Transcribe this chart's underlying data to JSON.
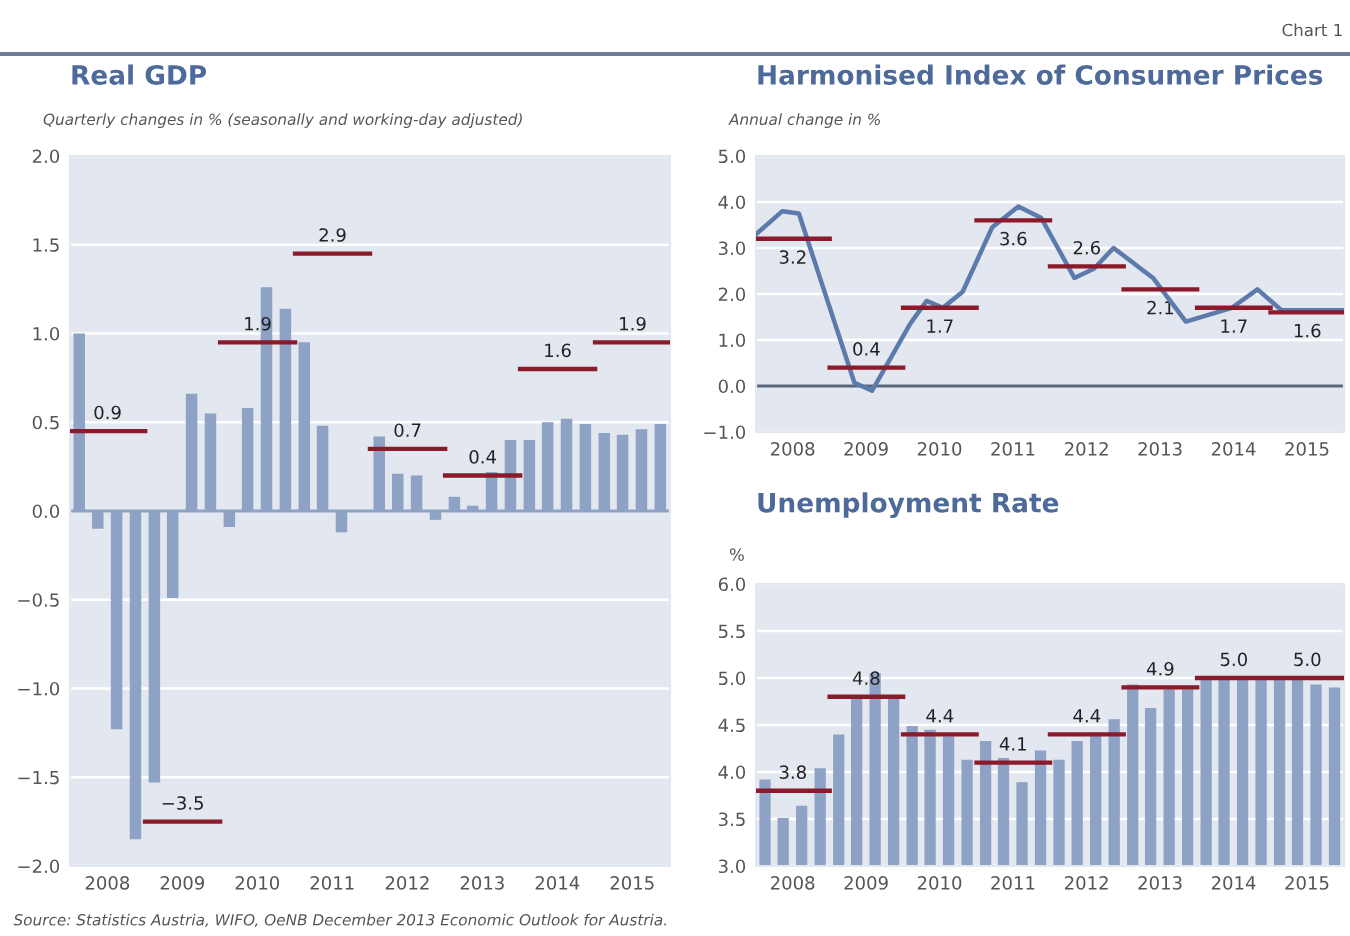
{
  "chart_data": [
    {
      "type": "bar",
      "title": "Real GDP",
      "subtitle": "Quarterly changes in % (seasonally and working-day adjusted)",
      "x": [
        "2008-02-15",
        "2008-05-15",
        "2008-08-15",
        "2008-11-15",
        "2009-02-15",
        "2009-05-15",
        "2009-08-15",
        "2009-11-15",
        "2010-02-15",
        "2010-05-15",
        "2010-08-15",
        "2010-11-15",
        "2011-02-15",
        "2011-05-15",
        "2011-08-15",
        "2011-11-15",
        "2012-02-15",
        "2012-05-15",
        "2012-08-15",
        "2012-11-15",
        "2013-02-15",
        "2013-05-15",
        "2013-08-15",
        "2013-11-15",
        "2014-02-15",
        "2014-05-15",
        "2014-08-15",
        "2014-11-15",
        "2015-02-15",
        "2015-05-15",
        "2015-08-15",
        "2015-11-15"
      ],
      "series": [
        {
          "color": "#8da2c4",
          "values": [
            1.0,
            -0.1,
            -1.23,
            -1.85,
            -1.53,
            -0.49,
            0.66,
            0.55,
            -0.09,
            0.58,
            1.26,
            1.14,
            0.95,
            0.48,
            -0.12,
            null,
            0.42,
            0.21,
            0.2,
            -0.05,
            0.08,
            0.03,
            0.22,
            0.4,
            0.4,
            0.5,
            0.52,
            0.49,
            0.44,
            0.43,
            0.46,
            0.49
          ]
        },
        {
          "type": "line",
          "axis": "y2",
          "color": "#8b1a2a",
          "x": [
            "2008-01-01",
            "2009-01-01",
            null,
            "2009-01-01",
            "2010-01-01",
            null,
            "2010-01-01",
            "2011-01-01",
            null,
            "2011-01-01",
            "2012-01-01",
            null,
            "2012-01-01",
            "2013-01-01",
            null,
            "2013-01-01",
            "2014-01-01",
            null,
            "2014-01-01",
            "2015-01-01",
            null,
            "2015-01-01",
            "2016-01-01"
          ],
          "values": [
            0.9,
            0.9,
            null,
            -3.5,
            -3.5,
            null,
            1.9,
            1.9,
            null,
            2.9,
            2.9,
            null,
            0.7,
            0.7,
            null,
            0.4,
            0.4,
            null,
            1.6,
            1.6,
            null,
            1.9,
            1.9
          ],
          "value_labels": [
            "0.9",
            null,
            null,
            "−3.5",
            null,
            null,
            "1.9",
            null,
            null,
            "2.9",
            null,
            null,
            "0.7",
            null,
            null,
            "0.4",
            null,
            null,
            "1.6",
            null,
            null,
            "1.9",
            null
          ]
        }
      ],
      "xlim": [
        "2008-01-01",
        "2016-01-01"
      ],
      "xticks": [
        {
          "value": "2008-07-01",
          "label": "2008"
        },
        {
          "value": "2009-07-01",
          "label": "2009"
        },
        {
          "value": "2010-07-01",
          "label": "2010"
        },
        {
          "value": "2011-07-01",
          "label": "2011"
        },
        {
          "value": "2012-07-01",
          "label": "2012"
        },
        {
          "value": "2013-07-01",
          "label": "2013"
        },
        {
          "value": "2014-07-01",
          "label": "2014"
        },
        {
          "value": "2015-07-01",
          "label": "2015"
        }
      ],
      "ylim": [
        -2,
        2
      ],
      "yticks": [
        {
          "value": -2,
          "label": "−2.0"
        },
        {
          "value": -1.5,
          "label": "−1.5"
        },
        {
          "value": -1,
          "label": "−1.0"
        },
        {
          "value": -0.5,
          "label": "−0.5"
        },
        {
          "value": 0,
          "label": "0.0"
        },
        {
          "value": 0.5,
          "label": "0.5"
        },
        {
          "value": 1,
          "label": "1.0"
        },
        {
          "value": 1.5,
          "label": "1.5"
        },
        {
          "value": 2,
          "label": "2.0"
        }
      ],
      "y2lim": [
        -4,
        4
      ],
      "ref_lines": [
        {
          "axis": "y",
          "value": 0,
          "color": "#8da2c4"
        }
      ],
      "grid": "y",
      "legend": false,
      "annotations": [
        "Source: Statistics Austria, WIFO, OeNB December 2013 Economic Outlook for Austria."
      ]
    },
    {
      "type": "line",
      "title": "Harmonised Index of Consumer Prices",
      "subtitle": "Annual change in %",
      "series": [
        {
          "color": "#5c7aab",
          "x": [
            "2008-01-01",
            "2008-05-11",
            "2008-08-01",
            "2009-05-04",
            "2009-07-31",
            "2010-02-05",
            "2010-04-28",
            "2010-07-18",
            "2010-10-24",
            "2011-03-20",
            "2011-07-28",
            "2011-11-19",
            "2012-05-01",
            "2012-08-06",
            "2012-11-12",
            "2013-05-27",
            "2013-11-06",
            "2014-06-23",
            "2014-10-28",
            "2015-02-24",
            "2016-01-01"
          ],
          "values": [
            3.3,
            3.8,
            3.75,
            0.07,
            -0.1,
            1.35,
            1.85,
            1.7,
            2.05,
            3.45,
            3.9,
            3.65,
            2.35,
            2.55,
            3.0,
            2.35,
            1.4,
            1.7,
            2.1,
            1.65,
            1.65
          ]
        },
        {
          "color": "#8b1a2a",
          "x": [
            "2008-01-01",
            "2009-01-01",
            null,
            "2009-01-01",
            "2010-01-01",
            null,
            "2010-01-01",
            "2011-01-01",
            null,
            "2011-01-01",
            "2012-01-01",
            null,
            "2012-01-01",
            "2013-01-01",
            null,
            "2013-01-01",
            "2014-01-01",
            null,
            "2014-01-01",
            "2015-01-01",
            null,
            "2015-01-01",
            "2016-01-01"
          ],
          "values": [
            3.2,
            3.2,
            null,
            0.4,
            0.4,
            null,
            1.7,
            1.7,
            null,
            3.6,
            3.6,
            null,
            2.6,
            2.6,
            null,
            2.1,
            2.1,
            null,
            1.7,
            1.7,
            null,
            1.6,
            1.6
          ],
          "value_labels": [
            "3.2",
            null,
            null,
            "0.4",
            null,
            null,
            "1.7",
            null,
            null,
            "3.6",
            null,
            null,
            "2.6",
            null,
            null,
            "2.1",
            null,
            null,
            "1.7",
            null,
            null,
            "1.6",
            null
          ]
        }
      ],
      "xlim": [
        "2008-01-01",
        "2016-01-01"
      ],
      "xticks": [
        {
          "value": "2008-07-01",
          "label": "2008"
        },
        {
          "value": "2009-07-01",
          "label": "2009"
        },
        {
          "value": "2010-07-01",
          "label": "2010"
        },
        {
          "value": "2011-07-01",
          "label": "2011"
        },
        {
          "value": "2012-07-01",
          "label": "2012"
        },
        {
          "value": "2013-07-01",
          "label": "2013"
        },
        {
          "value": "2014-07-01",
          "label": "2014"
        },
        {
          "value": "2015-07-01",
          "label": "2015"
        }
      ],
      "ylim": [
        -1,
        5
      ],
      "yticks": [
        {
          "value": -1,
          "label": "−1.0"
        },
        {
          "value": 0,
          "label": "0.0"
        },
        {
          "value": 1,
          "label": "1.0"
        },
        {
          "value": 2,
          "label": "2.0"
        },
        {
          "value": 3,
          "label": "3.0"
        },
        {
          "value": 4,
          "label": "4.0"
        },
        {
          "value": 5,
          "label": "5.0"
        }
      ],
      "ref_lines": [
        {
          "axis": "y",
          "value": 0,
          "color": "#5a6478"
        }
      ],
      "grid": "y",
      "legend": false,
      "marker": "none",
      "annotations": [
        "Chart 1"
      ]
    },
    {
      "type": "bar",
      "title": "Unemployment Rate",
      "ylabel": "%",
      "x": [
        "2008-02-15",
        "2008-05-15",
        "2008-08-15",
        "2008-11-15",
        "2009-02-15",
        "2009-05-15",
        "2009-08-15",
        "2009-11-15",
        "2010-02-15",
        "2010-05-15",
        "2010-08-15",
        "2010-11-15",
        "2011-02-15",
        "2011-05-15",
        "2011-08-15",
        "2011-11-15",
        "2012-02-15",
        "2012-05-15",
        "2012-08-15",
        "2012-11-15",
        "2013-02-15",
        "2013-05-15",
        "2013-08-15",
        "2013-11-15",
        "2014-02-15",
        "2014-05-15",
        "2014-08-15",
        "2014-11-15",
        "2015-02-15",
        "2015-05-15",
        "2015-08-15",
        "2015-11-15"
      ],
      "series": [
        {
          "color": "#8da2c4",
          "values": [
            3.92,
            3.51,
            3.64,
            4.04,
            4.4,
            4.82,
            5.05,
            4.79,
            4.49,
            4.45,
            4.38,
            4.13,
            4.33,
            4.15,
            3.89,
            4.23,
            4.13,
            4.33,
            4.42,
            4.56,
            4.93,
            4.68,
            4.88,
            4.88,
            5.0,
            5.0,
            5.0,
            5.0,
            5.0,
            5.0,
            4.93,
            4.9
          ]
        },
        {
          "type": "line",
          "color": "#8b1a2a",
          "x": [
            "2008-01-01",
            "2009-01-01",
            null,
            "2009-01-01",
            "2010-01-01",
            null,
            "2010-01-01",
            "2011-01-01",
            null,
            "2011-01-01",
            "2012-01-01",
            null,
            "2012-01-01",
            "2013-01-01",
            null,
            "2013-01-01",
            "2014-01-01",
            null,
            "2014-01-01",
            "2015-01-01",
            null,
            "2015-01-01",
            "2016-01-01"
          ],
          "values": [
            3.8,
            3.8,
            null,
            4.8,
            4.8,
            null,
            4.4,
            4.4,
            null,
            4.1,
            4.1,
            null,
            4.4,
            4.4,
            null,
            4.9,
            4.9,
            null,
            5.0,
            5.0,
            null,
            5.0,
            5.0
          ],
          "value_labels": [
            "3.8",
            null,
            null,
            "4.8",
            null,
            null,
            "4.4",
            null,
            null,
            "4.1",
            null,
            null,
            "4.4",
            null,
            null,
            "4.9",
            null,
            null,
            "5.0",
            null,
            null,
            "5.0",
            null
          ]
        }
      ],
      "xlim": [
        "2008-01-01",
        "2016-01-01"
      ],
      "xticks": [
        {
          "value": "2008-07-01",
          "label": "2008"
        },
        {
          "value": "2009-07-01",
          "label": "2009"
        },
        {
          "value": "2010-07-01",
          "label": "2010"
        },
        {
          "value": "2011-07-01",
          "label": "2011"
        },
        {
          "value": "2012-07-01",
          "label": "2012"
        },
        {
          "value": "2013-07-01",
          "label": "2013"
        },
        {
          "value": "2014-07-01",
          "label": "2014"
        },
        {
          "value": "2015-07-01",
          "label": "2015"
        }
      ],
      "ylim": [
        3,
        6
      ],
      "yticks": [
        {
          "value": 3,
          "label": "3.0"
        },
        {
          "value": 3.5,
          "label": "3.5"
        },
        {
          "value": 4,
          "label": "4.0"
        },
        {
          "value": 4.5,
          "label": "4.5"
        },
        {
          "value": 5,
          "label": "5.0"
        },
        {
          "value": 5.5,
          "label": "5.5"
        },
        {
          "value": 6,
          "label": "6.0"
        }
      ],
      "grid": "y",
      "legend": false
    }
  ]
}
